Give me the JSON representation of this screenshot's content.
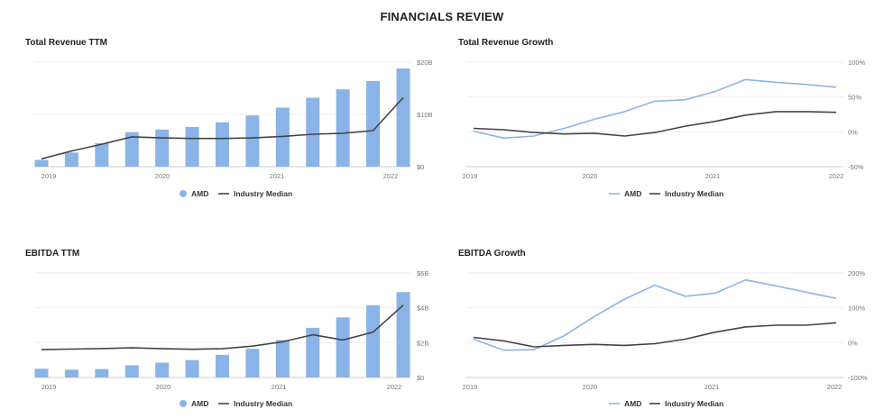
{
  "page_title": "FINANCIALS REVIEW",
  "colors": {
    "amd": "#8ab4e8",
    "industry": "#444444",
    "grid": "#eeeeee",
    "axis": "#cccccc"
  },
  "chart_data": [
    {
      "id": "rev_ttm",
      "type": "bar",
      "title": "Total Revenue TTM",
      "x_ticks": [
        "2019",
        "2020",
        "2021",
        "2022"
      ],
      "y_ticks": [
        "$0",
        "$10B",
        "$20B"
      ],
      "ylim": [
        0,
        20
      ],
      "unit": "B",
      "series": [
        {
          "name": "AMD",
          "kind": "bar",
          "values": [
            1.3,
            2.7,
            4.5,
            6.6,
            7.1,
            7.6,
            8.5,
            9.8,
            11.3,
            13.2,
            14.8,
            16.4,
            18.8
          ]
        },
        {
          "name": "Industry Median",
          "kind": "line",
          "values": [
            1.5,
            3.0,
            4.3,
            5.7,
            5.5,
            5.4,
            5.4,
            5.5,
            5.8,
            6.2,
            6.4,
            6.9,
            13.2
          ]
        }
      ]
    },
    {
      "id": "rev_growth",
      "type": "line",
      "title": "Total Revenue Growth",
      "x_ticks": [
        "2019",
        "2020",
        "2021",
        "2022"
      ],
      "y_ticks": [
        "-50%",
        "0%",
        "50%",
        "100%"
      ],
      "ylim": [
        -50,
        100
      ],
      "unit": "%",
      "series": [
        {
          "name": "AMD",
          "kind": "line",
          "values": [
            1,
            -9,
            -6,
            5,
            18,
            29,
            44,
            46,
            58,
            75,
            71,
            68,
            64
          ]
        },
        {
          "name": "Industry Median",
          "kind": "line",
          "values": [
            5,
            3,
            -1,
            -3,
            -2,
            -6,
            -1,
            8,
            15,
            24,
            29,
            29,
            28
          ]
        }
      ]
    },
    {
      "id": "ebitda_ttm",
      "type": "bar",
      "title": "EBITDA TTM",
      "x_ticks": [
        "2019",
        "2020",
        "2021",
        "2022"
      ],
      "y_ticks": [
        "$0",
        "$2B",
        "$4B",
        "$6B"
      ],
      "ylim": [
        0,
        6
      ],
      "unit": "B",
      "series": [
        {
          "name": "AMD",
          "kind": "bar",
          "values": [
            0.5,
            0.45,
            0.48,
            0.7,
            0.85,
            1.0,
            1.3,
            1.65,
            2.15,
            2.85,
            3.45,
            4.15,
            4.9
          ]
        },
        {
          "name": "Industry Median",
          "kind": "line",
          "values": [
            1.6,
            1.63,
            1.66,
            1.7,
            1.65,
            1.62,
            1.65,
            1.8,
            2.05,
            2.45,
            2.15,
            2.6,
            4.15
          ]
        }
      ]
    },
    {
      "id": "ebitda_growth",
      "type": "line",
      "title": "EBITDA Growth",
      "x_ticks": [
        "2019",
        "2020",
        "2021",
        "2022"
      ],
      "y_ticks": [
        "-100%",
        "0%",
        "100%",
        "200%"
      ],
      "ylim": [
        -100,
        200
      ],
      "unit": "%",
      "series": [
        {
          "name": "AMD",
          "kind": "line",
          "values": [
            10,
            -22,
            -20,
            20,
            75,
            125,
            165,
            133,
            142,
            180,
            163,
            145,
            127
          ]
        },
        {
          "name": "Industry Median",
          "kind": "line",
          "values": [
            15,
            5,
            -12,
            -8,
            -5,
            -8,
            -3,
            10,
            30,
            45,
            50,
            50,
            57
          ]
        }
      ]
    }
  ]
}
